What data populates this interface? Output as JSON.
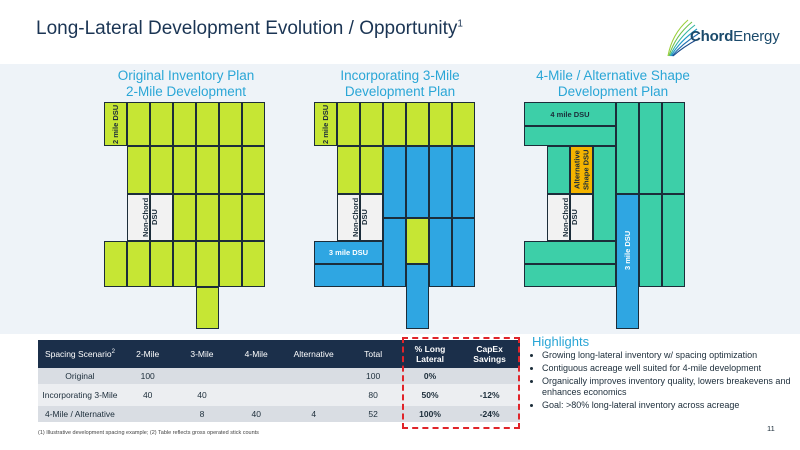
{
  "header": {
    "title": "Long-Lateral Development Evolution / Opportunity",
    "title_sup": "1",
    "logo_text_bold": "Chord",
    "logo_text_rest": "Energy"
  },
  "plans": [
    {
      "title_line1": "Original Inventory Plan",
      "title_line2": "2-Mile Development"
    },
    {
      "title_line1": "Incorporating 3-Mile",
      "title_line2": "Development Plan"
    },
    {
      "title_line1": "4-Mile / Alternative Shape",
      "title_line2": "Development Plan"
    }
  ],
  "labels": {
    "dsu_2mile": "2 mile DSU",
    "non_chord": "Non-Chord DSU",
    "dsu_3mile": "3 mile DSU",
    "dsu_4mile": "4 mile DSU",
    "alt_shape": "Alternative Shape DSU"
  },
  "colors": {
    "two_mile": "#c6e634",
    "three_mile": "#2fa6e2",
    "four_mile": "#3dcfa8",
    "alternative": "#f4b400",
    "non_chord": "#f2f2f2",
    "highlight_border": "#e0242a"
  },
  "table": {
    "headers": [
      "Spacing Scenario",
      "2-Mile",
      "3-Mile",
      "4-Mile",
      "Alternative",
      "Total",
      "% Long Lateral",
      "CapEx Savings"
    ],
    "header_sup": "2",
    "rows": [
      [
        "Original",
        "100",
        "",
        "",
        "",
        "100",
        "0%",
        ""
      ],
      [
        "Incorporating 3-Mile",
        "40",
        "40",
        "",
        "",
        "80",
        "50%",
        "-12%"
      ],
      [
        "4-Mile / Alternative",
        "",
        "8",
        "40",
        "4",
        "52",
        "100%",
        "-24%"
      ]
    ]
  },
  "highlights": {
    "title": "Highlights",
    "items": [
      "Growing long-lateral inventory w/ spacing optimization",
      "Contiguous acreage well suited for 4-mile development",
      "Organically improves inventory quality, lowers breakevens and enhances economics",
      "Goal: >80% long-lateral inventory across acreage"
    ]
  },
  "footnote": "(1) Illustrative development spacing example; (2) Table reflects gross operated stick counts",
  "page_number": "11"
}
